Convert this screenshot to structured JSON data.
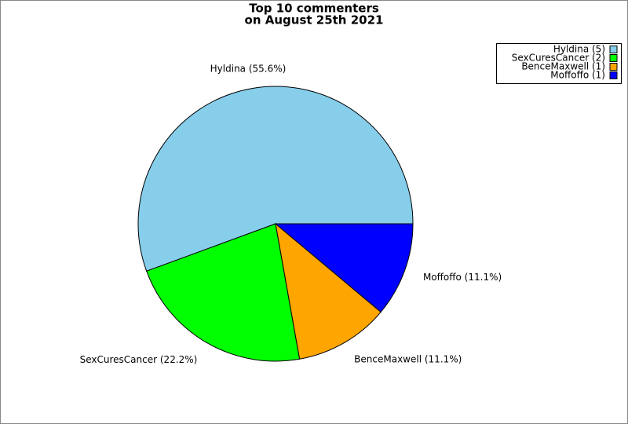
{
  "chart_data": {
    "type": "pie",
    "title": [
      "Top 10 commenters",
      "on August 25th 2021"
    ],
    "categories": [
      "Hyldina",
      "SexCuresCancer",
      "BenceMaxwell",
      "Moffoffo"
    ],
    "values": [
      55.6,
      22.2,
      11.1,
      11.1
    ],
    "value_labels": [
      "Hyldina (55.6%)",
      "SexCuresCancer (22.2%)",
      "BenceMaxwell (11.1%)",
      "Moffoffo (11.1%)"
    ],
    "legend_labels": [
      "Hyldina (5)",
      "SexCuresCancer (2)",
      "BenceMaxwell (1)",
      "Moffoffo (1)"
    ],
    "colors": [
      "#87ceeb",
      "#00ff00",
      "#ffa500",
      "#0000ff"
    ],
    "legend": "upper right"
  }
}
